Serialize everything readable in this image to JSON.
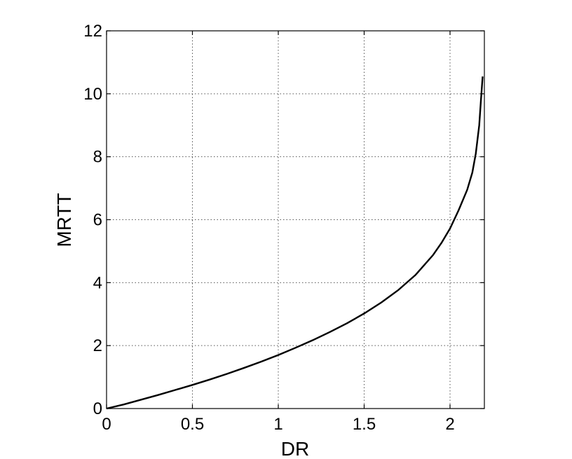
{
  "chart_data": {
    "type": "line",
    "title": "",
    "xlabel": "DR",
    "ylabel": "MRTT",
    "xlim": [
      0,
      2.2
    ],
    "ylim": [
      0,
      12
    ],
    "xticks": [
      0,
      0.5,
      1,
      1.5,
      2
    ],
    "xtick_labels": [
      "0",
      "0.5",
      "1",
      "1.5",
      "2"
    ],
    "yticks": [
      0,
      2,
      4,
      6,
      8,
      10,
      12
    ],
    "ytick_labels": [
      "0",
      "2",
      "4",
      "6",
      "8",
      "10",
      "12"
    ],
    "grid": true,
    "legend": "none",
    "line_color": "#000000",
    "series": [
      {
        "x": [
          0,
          0.1,
          0.2,
          0.3,
          0.4,
          0.5,
          0.6,
          0.7,
          0.8,
          0.9,
          1.0,
          1.1,
          1.2,
          1.3,
          1.4,
          1.5,
          1.6,
          1.7,
          1.8,
          1.9,
          1.95,
          2.0,
          2.05,
          2.1,
          2.13,
          2.15,
          2.17,
          2.18,
          2.19
        ],
        "y": [
          0,
          0.13,
          0.28,
          0.43,
          0.59,
          0.75,
          0.92,
          1.1,
          1.29,
          1.49,
          1.7,
          1.93,
          2.17,
          2.43,
          2.71,
          3.02,
          3.37,
          3.77,
          4.25,
          4.87,
          5.26,
          5.72,
          6.3,
          6.95,
          7.5,
          8.1,
          9.0,
          9.8,
          10.55
        ]
      }
    ]
  }
}
